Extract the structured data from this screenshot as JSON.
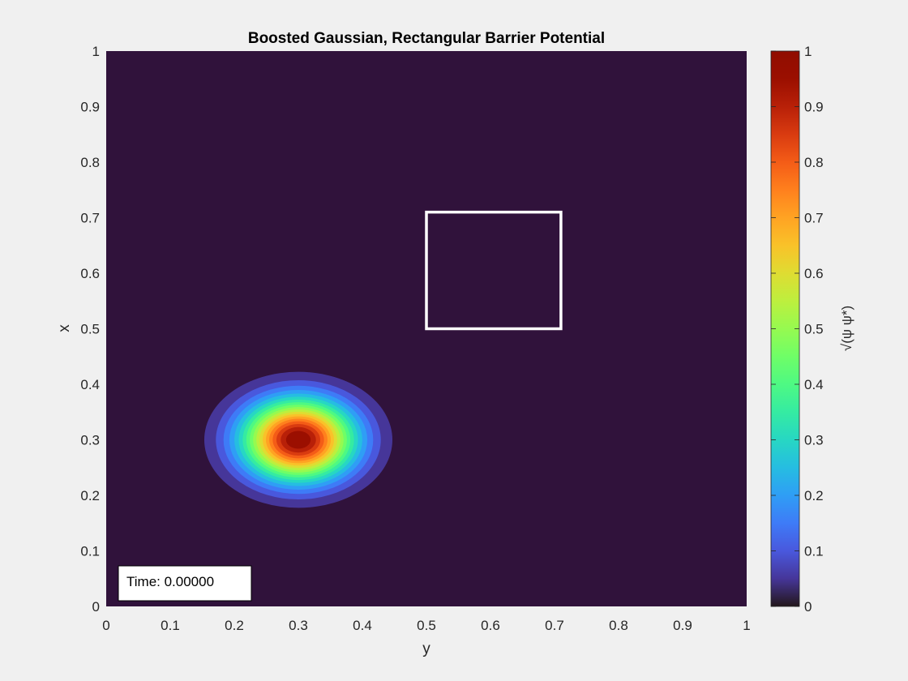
{
  "chart_data": {
    "type": "heatmap",
    "title": "Boosted Gaussian, Rectangular Barrier Potential",
    "xlabel": "y",
    "ylabel": "x",
    "xlim": [
      0,
      1
    ],
    "ylim": [
      0,
      1
    ],
    "xticks": [
      "0",
      "0.1",
      "0.2",
      "0.3",
      "0.4",
      "0.5",
      "0.6",
      "0.7",
      "0.8",
      "0.9",
      "1"
    ],
    "yticks": [
      "0",
      "0.1",
      "0.2",
      "0.3",
      "0.4",
      "0.5",
      "0.6",
      "0.7",
      "0.8",
      "0.9",
      "1"
    ],
    "grid": false,
    "colormap": "turbo",
    "colorbar": {
      "label": "√(ψ ψ*)",
      "range": [
        0,
        1
      ],
      "ticks": [
        "0",
        "0.1",
        "0.2",
        "0.3",
        "0.4",
        "0.5",
        "0.6",
        "0.7",
        "0.8",
        "0.9",
        "1"
      ]
    },
    "gaussian": {
      "center_y": 0.3,
      "center_x": 0.3,
      "peak": 1.0,
      "spread_y": 0.06,
      "spread_x": 0.05,
      "levels": 20
    },
    "barrier": {
      "y_range": [
        0.5,
        0.71
      ],
      "x_range": [
        0.5,
        0.71
      ],
      "color": "#ffffff"
    },
    "annotation": "Time: 0.00000",
    "background_color": "#30123b"
  }
}
